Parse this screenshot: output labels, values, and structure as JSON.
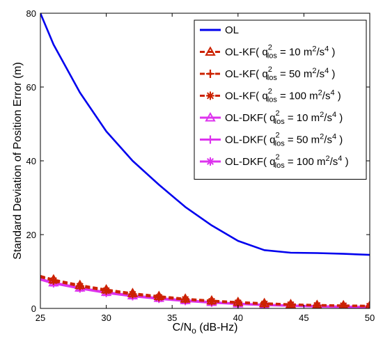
{
  "chart_data": {
    "type": "line",
    "title": "",
    "xlabel": {
      "main": "C/N",
      "sub": "o",
      "tail": " (dB-Hz)"
    },
    "ylabel": "Standard Deviation of Position Error (m)",
    "xlim": [
      25,
      50
    ],
    "ylim": [
      0,
      80
    ],
    "xticks": [
      25,
      30,
      35,
      40,
      45,
      50
    ],
    "yticks": [
      0,
      20,
      40,
      60,
      80
    ],
    "grid": false,
    "legend_position": "top-right",
    "x": [
      25,
      26,
      28,
      30,
      32,
      34,
      36,
      38,
      40,
      42,
      44,
      46,
      48,
      50
    ],
    "series": [
      {
        "name": "OL",
        "legend": {
          "prefix": "OL",
          "q": "",
          "sub": "",
          "val": "",
          "unit": ""
        },
        "color": "#0000ee",
        "style": "solid",
        "marker": "none",
        "values": [
          80,
          71.5,
          58.5,
          48,
          40,
          33.5,
          27.5,
          22.5,
          18.3,
          15.8,
          15.1,
          15.0,
          14.8,
          14.5
        ]
      },
      {
        "name": "OL-KF( q²los = 10 m²/s⁴ )",
        "legend": {
          "prefix": "OL-KF( ",
          "q": "q",
          "sub": "los",
          "val": " = 10 m",
          "unit": "/s"
        },
        "color": "#cc2200",
        "style": "dashed",
        "marker": "triangle",
        "values": [
          8.8,
          7.8,
          6.3,
          5.1,
          4.1,
          3.3,
          2.6,
          2.1,
          1.7,
          1.4,
          1.1,
          0.9,
          0.8,
          0.7
        ]
      },
      {
        "name": "OL-KF( q²los = 50 m²/s⁴ )",
        "legend": {
          "prefix": "OL-KF( ",
          "q": "q",
          "sub": "los",
          "val": " = 50 m",
          "unit": "/s"
        },
        "color": "#cc2200",
        "style": "dashed",
        "marker": "plus",
        "values": [
          8.6,
          7.6,
          6.1,
          4.9,
          3.9,
          3.1,
          2.5,
          2.0,
          1.6,
          1.3,
          1.0,
          0.85,
          0.75,
          0.65
        ]
      },
      {
        "name": "OL-KF( q²los = 100 m²/s⁴ )",
        "legend": {
          "prefix": "OL-KF( ",
          "q": "q",
          "sub": "los",
          "val": " = 100 m",
          "unit": "/s"
        },
        "color": "#cc2200",
        "style": "dashed",
        "marker": "star",
        "values": [
          8.5,
          7.5,
          6.0,
          4.8,
          3.8,
          3.0,
          2.4,
          1.9,
          1.5,
          1.2,
          1.0,
          0.8,
          0.7,
          0.6
        ]
      },
      {
        "name": "OL-DKF( q²los = 10 m²/s⁴ )",
        "legend": {
          "prefix": "OL-DKF( ",
          "q": "q",
          "sub": "los",
          "val": " = 10 m",
          "unit": "/s"
        },
        "color": "#dd33ee",
        "style": "solid",
        "marker": "triangle",
        "values": [
          8.0,
          7.0,
          5.6,
          4.4,
          3.5,
          2.8,
          2.2,
          1.7,
          1.3,
          1.0,
          0.8,
          0.6,
          0.5,
          0.4
        ]
      },
      {
        "name": "OL-DKF( q²los = 50 m²/s⁴ )",
        "legend": {
          "prefix": "OL-DKF( ",
          "q": "q",
          "sub": "los",
          "val": " = 50 m",
          "unit": "/s"
        },
        "color": "#dd33ee",
        "style": "solid",
        "marker": "plus",
        "values": [
          7.9,
          6.9,
          5.5,
          4.3,
          3.4,
          2.7,
          2.1,
          1.6,
          1.25,
          0.95,
          0.75,
          0.55,
          0.45,
          0.35
        ]
      },
      {
        "name": "OL-DKF( q²los = 100 m²/s⁴ )",
        "legend": {
          "prefix": "OL-DKF( ",
          "q": "q",
          "sub": "los",
          "val": " = 100 m",
          "unit": "/s"
        },
        "color": "#dd33ee",
        "style": "solid",
        "marker": "star",
        "values": [
          7.8,
          6.8,
          5.4,
          4.2,
          3.3,
          2.6,
          2.0,
          1.55,
          1.2,
          0.9,
          0.7,
          0.5,
          0.4,
          0.3
        ]
      }
    ]
  }
}
